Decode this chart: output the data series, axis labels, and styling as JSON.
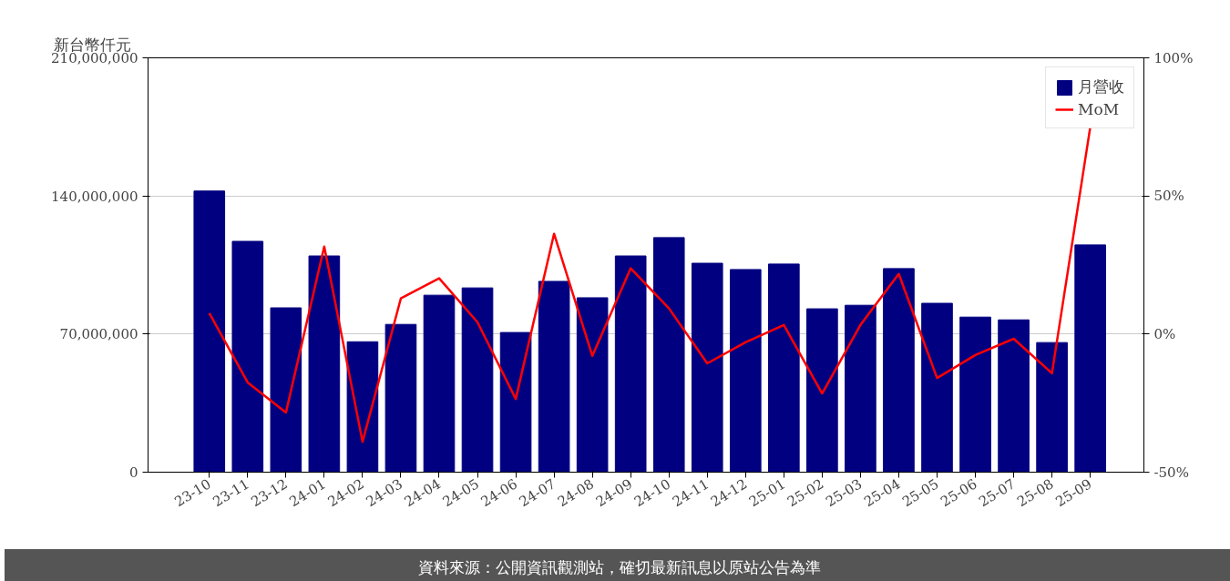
{
  "chart_data": {
    "type": "bar",
    "ylabel": "新台幣仟元",
    "categories": [
      "23-10",
      "23-11",
      "23-12",
      "24-01",
      "24-02",
      "24-03",
      "24-04",
      "24-05",
      "24-06",
      "24-07",
      "24-08",
      "24-09",
      "24-10",
      "24-11",
      "24-12",
      "25-01",
      "25-02",
      "25-03",
      "25-04",
      "25-05",
      "25-06",
      "25-07",
      "25-08",
      "25-09"
    ],
    "series": [
      {
        "name": "月營收",
        "color": "#000080",
        "values": [
          142500000,
          117000000,
          83300000,
          109600000,
          66100000,
          74900000,
          89700000,
          93400000,
          70800000,
          96700000,
          88400000,
          109600000,
          118900000,
          105900000,
          102700000,
          105500000,
          82800000,
          84600000,
          103200000,
          85600000,
          78600000,
          77200000,
          65700000,
          115200000
        ]
      },
      {
        "name": "MoM",
        "type": "line",
        "axis": "y2",
        "color": "#ff0000",
        "values": [
          7.6,
          -17.5,
          -28.4,
          31.7,
          -39.0,
          12.9,
          20.2,
          4.3,
          -23.5,
          36.3,
          -7.9,
          23.8,
          9.3,
          -10.6,
          -3.0,
          3.3,
          -21.5,
          3.3,
          21.8,
          -15.9,
          -7.6,
          -1.7,
          -14.2,
          75
        ]
      }
    ],
    "ylim": [
      0,
      210000000
    ],
    "yticks": [
      {
        "value": 0,
        "label": "0"
      },
      {
        "value": 70000000,
        "label": "70,000,000"
      },
      {
        "value": 140000000,
        "label": "140,000,000"
      },
      {
        "value": 210000000,
        "label": "210,000,000"
      }
    ],
    "y2lim": [
      -50,
      100
    ],
    "y2ticks": [
      {
        "value": -50,
        "label": "-50%"
      },
      {
        "value": 0,
        "label": "0%"
      },
      {
        "value": 50,
        "label": "50%"
      },
      {
        "value": 100,
        "label": "100%"
      }
    ],
    "grid": "y",
    "legend": "top right",
    "annotations": [
      "資料來源：公開資訊觀測站，確切最新訊息以原站公告為準"
    ]
  }
}
